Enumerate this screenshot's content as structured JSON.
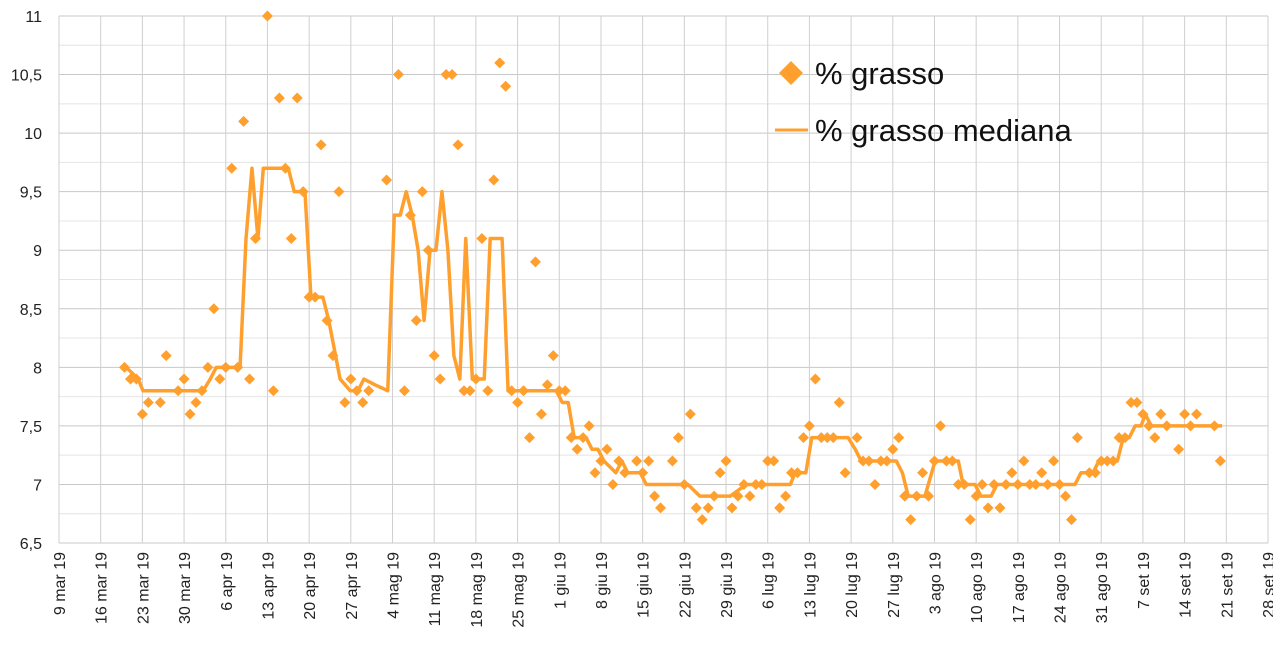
{
  "chart_data": {
    "type": "scatter",
    "title": "",
    "xlabel": "",
    "ylabel": "",
    "x_unit": "days since 9 mar 19",
    "xlim": [
      0,
      203
    ],
    "ylim": [
      6.5,
      11
    ],
    "grid": true,
    "legend_position": "top-right",
    "colors": {
      "series": "#FFA02E",
      "grid": "#cfcfcf"
    },
    "yticks": [
      "6,5",
      "7",
      "7,5",
      "8",
      "8,5",
      "9",
      "9,5",
      "10",
      "10,5",
      "11"
    ],
    "ytick_values": [
      6.5,
      7,
      7.5,
      8,
      8.5,
      9,
      9.5,
      10,
      10.5,
      11
    ],
    "xticks": [
      "9 mar 19",
      "16 mar 19",
      "23 mar 19",
      "30 mar 19",
      "6 apr 19",
      "13 apr 19",
      "20 apr 19",
      "27 apr 19",
      "4 mag 19",
      "11 mag 19",
      "18 mag 19",
      "25 mag 19",
      "1 giu 19",
      "8 giu 19",
      "15 giu 19",
      "22 giu 19",
      "29 giu 19",
      "6 lug 19",
      "13 lug 19",
      "20 lug 19",
      "27 lug 19",
      "3 ago 19",
      "10 ago 19",
      "17 ago 19",
      "24 ago 19",
      "31 ago 19",
      "7 set 19",
      "14 set 19",
      "21 set 19",
      "28 set 19"
    ],
    "series": [
      {
        "name": "% grasso",
        "type": "scatter",
        "marker": "diamond",
        "points": [
          [
            11,
            8.0
          ],
          [
            12,
            7.9
          ],
          [
            13,
            7.9
          ],
          [
            14,
            7.6
          ],
          [
            15,
            7.7
          ],
          [
            17,
            7.7
          ],
          [
            18,
            8.1
          ],
          [
            20,
            7.8
          ],
          [
            21,
            7.9
          ],
          [
            22,
            7.6
          ],
          [
            23,
            7.7
          ],
          [
            24,
            7.8
          ],
          [
            25,
            8.0
          ],
          [
            26,
            8.5
          ],
          [
            27,
            7.9
          ],
          [
            28,
            8.0
          ],
          [
            29,
            9.7
          ],
          [
            30,
            8.0
          ],
          [
            31,
            10.1
          ],
          [
            32,
            7.9
          ],
          [
            33,
            9.1
          ],
          [
            35,
            11.0
          ],
          [
            36,
            7.8
          ],
          [
            37,
            10.3
          ],
          [
            38,
            9.7
          ],
          [
            39,
            9.1
          ],
          [
            40,
            10.3
          ],
          [
            41,
            9.5
          ],
          [
            42,
            8.6
          ],
          [
            43,
            8.6
          ],
          [
            44,
            9.9
          ],
          [
            45,
            8.4
          ],
          [
            46,
            8.1
          ],
          [
            47,
            9.5
          ],
          [
            48,
            7.7
          ],
          [
            49,
            7.9
          ],
          [
            50,
            7.8
          ],
          [
            51,
            7.7
          ],
          [
            52,
            7.8
          ],
          [
            55,
            9.6
          ],
          [
            57,
            10.5
          ],
          [
            58,
            7.8
          ],
          [
            59,
            9.3
          ],
          [
            60,
            8.4
          ],
          [
            61,
            9.5
          ],
          [
            62,
            9.0
          ],
          [
            63,
            8.1
          ],
          [
            64,
            7.9
          ],
          [
            65,
            10.5
          ],
          [
            66,
            10.5
          ],
          [
            67,
            9.9
          ],
          [
            68,
            7.8
          ],
          [
            69,
            7.8
          ],
          [
            70,
            7.9
          ],
          [
            71,
            9.1
          ],
          [
            72,
            7.8
          ],
          [
            73,
            9.6
          ],
          [
            74,
            10.6
          ],
          [
            75,
            10.4
          ],
          [
            76,
            7.8
          ],
          [
            77,
            7.7
          ],
          [
            78,
            7.8
          ],
          [
            79,
            7.4
          ],
          [
            80,
            8.9
          ],
          [
            81,
            7.6
          ],
          [
            82,
            7.85
          ],
          [
            83,
            8.1
          ],
          [
            84,
            7.8
          ],
          [
            85,
            7.8
          ],
          [
            86,
            7.4
          ],
          [
            87,
            7.3
          ],
          [
            88,
            7.4
          ],
          [
            89,
            7.5
          ],
          [
            90,
            7.1
          ],
          [
            91,
            7.2
          ],
          [
            92,
            7.3
          ],
          [
            93,
            7.0
          ],
          [
            94,
            7.2
          ],
          [
            95,
            7.1
          ],
          [
            97,
            7.2
          ],
          [
            98,
            7.1
          ],
          [
            99,
            7.2
          ],
          [
            100,
            6.9
          ],
          [
            101,
            6.8
          ],
          [
            103,
            7.2
          ],
          [
            104,
            7.4
          ],
          [
            105,
            7.0
          ],
          [
            106,
            7.6
          ],
          [
            107,
            6.8
          ],
          [
            108,
            6.7
          ],
          [
            109,
            6.8
          ],
          [
            110,
            6.9
          ],
          [
            111,
            7.1
          ],
          [
            112,
            7.2
          ],
          [
            113,
            6.8
          ],
          [
            114,
            6.9
          ],
          [
            115,
            7.0
          ],
          [
            116,
            6.9
          ],
          [
            117,
            7.0
          ],
          [
            118,
            7.0
          ],
          [
            119,
            7.2
          ],
          [
            120,
            7.2
          ],
          [
            121,
            6.8
          ],
          [
            122,
            6.9
          ],
          [
            123,
            7.1
          ],
          [
            124,
            7.1
          ],
          [
            125,
            7.4
          ],
          [
            126,
            7.5
          ],
          [
            127,
            7.9
          ],
          [
            128,
            7.4
          ],
          [
            129,
            7.4
          ],
          [
            130,
            7.4
          ],
          [
            131,
            7.7
          ],
          [
            132,
            7.1
          ],
          [
            134,
            7.4
          ],
          [
            135,
            7.2
          ],
          [
            136,
            7.2
          ],
          [
            137,
            7.0
          ],
          [
            138,
            7.2
          ],
          [
            139,
            7.2
          ],
          [
            140,
            7.3
          ],
          [
            141,
            7.4
          ],
          [
            142,
            6.9
          ],
          [
            143,
            6.7
          ],
          [
            144,
            6.9
          ],
          [
            145,
            7.1
          ],
          [
            146,
            6.9
          ],
          [
            147,
            7.2
          ],
          [
            148,
            7.5
          ],
          [
            149,
            7.2
          ],
          [
            150,
            7.2
          ],
          [
            151,
            7.0
          ],
          [
            152,
            7.0
          ],
          [
            153,
            6.7
          ],
          [
            154,
            6.9
          ],
          [
            155,
            7.0
          ],
          [
            156,
            6.8
          ],
          [
            157,
            7.0
          ],
          [
            158,
            6.8
          ],
          [
            159,
            7.0
          ],
          [
            160,
            7.1
          ],
          [
            161,
            7.0
          ],
          [
            162,
            7.2
          ],
          [
            163,
            7.0
          ],
          [
            164,
            7.0
          ],
          [
            165,
            7.1
          ],
          [
            166,
            7.0
          ],
          [
            167,
            7.2
          ],
          [
            168,
            7.0
          ],
          [
            169,
            6.9
          ],
          [
            170,
            6.7
          ],
          [
            171,
            7.4
          ],
          [
            173,
            7.1
          ],
          [
            174,
            7.1
          ],
          [
            175,
            7.2
          ],
          [
            176,
            7.2
          ],
          [
            177,
            7.2
          ],
          [
            178,
            7.4
          ],
          [
            179,
            7.4
          ],
          [
            180,
            7.7
          ],
          [
            181,
            7.7
          ],
          [
            182,
            7.6
          ],
          [
            183,
            7.5
          ],
          [
            184,
            7.4
          ],
          [
            185,
            7.6
          ],
          [
            186,
            7.5
          ],
          [
            188,
            7.3
          ],
          [
            189,
            7.6
          ],
          [
            190,
            7.5
          ],
          [
            191,
            7.6
          ],
          [
            194,
            7.5
          ],
          [
            195,
            7.2
          ]
        ]
      },
      {
        "name": "% grasso mediana",
        "type": "line",
        "points": [
          [
            11.3,
            8.0
          ],
          [
            13.3,
            7.9
          ],
          [
            14.1,
            7.8
          ],
          [
            24.2,
            7.8
          ],
          [
            25.4,
            7.9
          ],
          [
            26.4,
            8.0
          ],
          [
            30.4,
            8.0
          ],
          [
            31.4,
            9.1
          ],
          [
            32.4,
            9.7
          ],
          [
            33.4,
            9.1
          ],
          [
            34.3,
            9.7
          ],
          [
            38.5,
            9.7
          ],
          [
            39.5,
            9.5
          ],
          [
            41.3,
            9.5
          ],
          [
            42.3,
            8.6
          ],
          [
            44.3,
            8.6
          ],
          [
            45.3,
            8.4
          ],
          [
            47.2,
            7.9
          ],
          [
            48.9,
            7.8
          ],
          [
            50.2,
            7.8
          ],
          [
            51.2,
            7.9
          ],
          [
            53.1,
            7.85
          ],
          [
            55.2,
            7.8
          ],
          [
            56.3,
            9.3
          ],
          [
            57.3,
            9.3
          ],
          [
            58.3,
            9.5
          ],
          [
            59.3,
            9.3
          ],
          [
            60.3,
            9.0
          ],
          [
            61.3,
            8.4
          ],
          [
            62.3,
            9.0
          ],
          [
            63.3,
            9.0
          ],
          [
            64.3,
            9.5
          ],
          [
            65.3,
            9.0
          ],
          [
            66.3,
            8.1
          ],
          [
            67.3,
            7.9
          ],
          [
            68.3,
            9.1
          ],
          [
            69.4,
            7.9
          ],
          [
            71.4,
            7.9
          ],
          [
            72.4,
            9.1
          ],
          [
            74.4,
            9.1
          ],
          [
            75.4,
            7.8
          ],
          [
            83.5,
            7.8
          ],
          [
            84.5,
            7.7
          ],
          [
            85.5,
            7.7
          ],
          [
            86.5,
            7.4
          ],
          [
            88.5,
            7.4
          ],
          [
            89.5,
            7.3
          ],
          [
            90.5,
            7.3
          ],
          [
            91.5,
            7.2
          ],
          [
            93.5,
            7.1
          ],
          [
            94.5,
            7.2
          ],
          [
            95.5,
            7.1
          ],
          [
            97.6,
            7.1
          ],
          [
            98.6,
            7.0
          ],
          [
            105.6,
            7.0
          ],
          [
            107.6,
            6.9
          ],
          [
            112.7,
            6.9
          ],
          [
            115.4,
            7.0
          ],
          [
            122.8,
            7.0
          ],
          [
            123.6,
            7.1
          ],
          [
            125.4,
            7.1
          ],
          [
            126.4,
            7.4
          ],
          [
            132.5,
            7.4
          ],
          [
            133.7,
            7.3
          ],
          [
            134.7,
            7.2
          ],
          [
            140.6,
            7.2
          ],
          [
            141.6,
            7.1
          ],
          [
            142.6,
            6.9
          ],
          [
            145.4,
            6.9
          ],
          [
            147.1,
            7.2
          ],
          [
            151.0,
            7.2
          ],
          [
            151.8,
            7.0
          ],
          [
            153.8,
            7.0
          ],
          [
            154.8,
            6.9
          ],
          [
            156.5,
            6.9
          ],
          [
            157.5,
            7.0
          ],
          [
            170.6,
            7.0
          ],
          [
            171.6,
            7.1
          ],
          [
            173.6,
            7.1
          ],
          [
            174.6,
            7.2
          ],
          [
            177.7,
            7.2
          ],
          [
            178.7,
            7.4
          ],
          [
            179.7,
            7.4
          ],
          [
            180.7,
            7.5
          ],
          [
            181.7,
            7.5
          ],
          [
            182.4,
            7.6
          ],
          [
            183.4,
            7.5
          ],
          [
            195.3,
            7.5
          ]
        ]
      }
    ],
    "legend": [
      {
        "label": "% grasso",
        "marker": "diamond"
      },
      {
        "label": "% grasso mediana",
        "marker": "line"
      }
    ]
  }
}
